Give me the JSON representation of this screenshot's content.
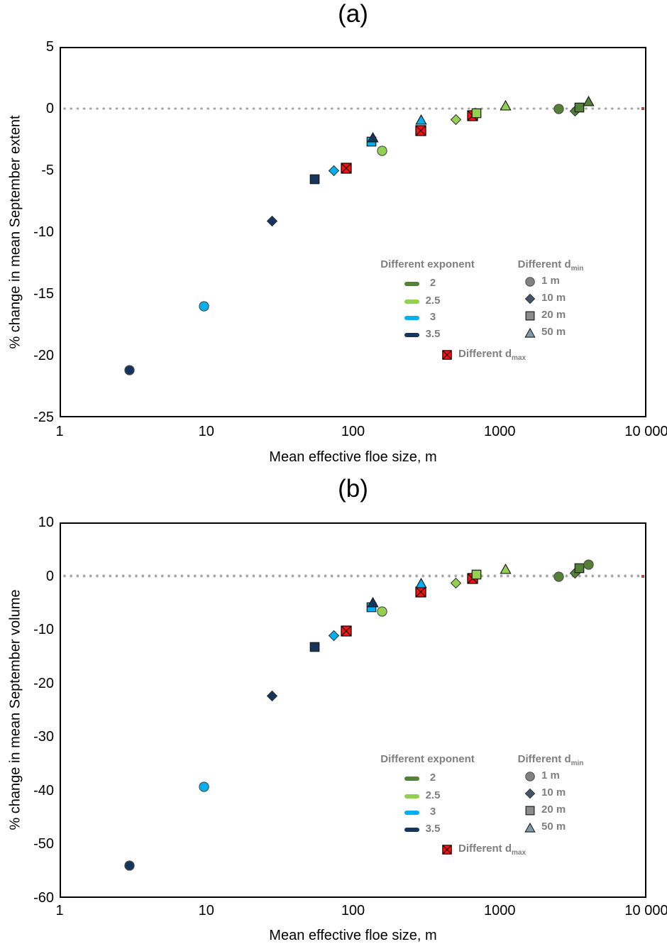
{
  "palette": {
    "exp2": "#538135",
    "exp25": "#92D050",
    "exp3": "#00B0F0",
    "exp35": "#16355C",
    "dmax": "#FF1010",
    "legend_text": "#7F7F7F",
    "legend_gray_circle": "#828282",
    "legend_gray_diamond": "#44546A",
    "legend_gray_square": "#8C8C8C",
    "legend_gray_triangle": "#7F9BAB",
    "zero_line": "#A6A6A6",
    "zero_line_end": "#B2493B"
  },
  "legend": {
    "exponent": {
      "header": "Different exponent",
      "items": [
        {
          "label": "2",
          "color_key": "exp2"
        },
        {
          "label": "2.5",
          "color_key": "exp25"
        },
        {
          "label": "3",
          "color_key": "exp3"
        },
        {
          "label": "3.5",
          "color_key": "exp35"
        }
      ]
    },
    "dmin": {
      "header_prefix": "Different d",
      "header_sub": "min",
      "items": [
        {
          "label": "1 m",
          "marker": "circle",
          "fill_key": "legend_gray_circle"
        },
        {
          "label": "10 m",
          "marker": "diamond",
          "fill_key": "legend_gray_diamond"
        },
        {
          "label": "20 m",
          "marker": "square",
          "fill_key": "legend_gray_square"
        },
        {
          "label": "50 m",
          "marker": "triangle",
          "fill_key": "legend_gray_triangle"
        }
      ]
    },
    "dmax": {
      "label_prefix": "Different d",
      "label_sub": "max",
      "marker": "redx",
      "color_key": "dmax"
    }
  },
  "chart_data": [
    {
      "type": "scatter",
      "title": "(a)",
      "xlabel": "Mean effective floe size, m",
      "ylabel": "% change in mean September extent",
      "x_scale": "log10",
      "xlim": [
        1,
        10000
      ],
      "ylim": [
        -25,
        5
      ],
      "x_tick_values": [
        1,
        10,
        100,
        1000,
        10000
      ],
      "x_tick_labels": [
        "1",
        "10",
        "100",
        "1000",
        "10 000"
      ],
      "y_tick_values": [
        5,
        0,
        -5,
        -10,
        -15,
        -20,
        -25
      ],
      "y_tick_labels": [
        "5",
        "0",
        "-5",
        "-10",
        "-15",
        "-20",
        "-25"
      ],
      "zero_line": true,
      "grid": false,
      "legend_position": "inside lower right",
      "series": [
        {
          "name": "Different dmax",
          "color_key": "dmax",
          "points": [
            {
              "marker": "redx",
              "x": 90,
              "y": -4.8
            },
            {
              "marker": "redx",
              "x": 290,
              "y": -1.8
            },
            {
              "marker": "redx",
              "x": 650,
              "y": -0.6
            }
          ]
        },
        {
          "name": "exponent 3",
          "color_key": "exp3",
          "points": [
            {
              "marker": "circle",
              "x": 9.6,
              "y": -16.0
            },
            {
              "marker": "diamond",
              "x": 74,
              "y": -5.0
            },
            {
              "marker": "square",
              "x": 134,
              "y": -2.7
            },
            {
              "marker": "triangle",
              "x": 292,
              "y": -0.9
            }
          ]
        },
        {
          "name": "exponent 2.5",
          "color_key": "exp25",
          "points": [
            {
              "marker": "circle",
              "x": 157,
              "y": -3.4
            },
            {
              "marker": "diamond",
              "x": 500,
              "y": -0.9
            },
            {
              "marker": "square",
              "x": 695,
              "y": -0.4
            },
            {
              "marker": "triangle",
              "x": 1100,
              "y": 0.25
            }
          ]
        },
        {
          "name": "exponent 3.5",
          "color_key": "exp35",
          "points": [
            {
              "marker": "circle",
              "x": 3,
              "y": -21.2
            },
            {
              "marker": "diamond",
              "x": 28,
              "y": -9.1
            },
            {
              "marker": "square",
              "x": 55,
              "y": -5.7
            },
            {
              "marker": "triangle",
              "x": 136,
              "y": -2.3
            }
          ]
        },
        {
          "name": "exponent 2",
          "color_key": "exp2",
          "points": [
            {
              "marker": "circle",
              "x": 2540,
              "y": 0.0
            },
            {
              "marker": "diamond",
              "x": 3280,
              "y": -0.2
            },
            {
              "marker": "square",
              "x": 3500,
              "y": 0.1
            },
            {
              "marker": "triangle",
              "x": 4050,
              "y": 0.6
            }
          ]
        }
      ]
    },
    {
      "type": "scatter",
      "title": "(b)",
      "xlabel": "Mean effective floe size, m",
      "ylabel": "% change in mean September volume",
      "x_scale": "log10",
      "xlim": [
        1,
        10000
      ],
      "ylim": [
        -60,
        10
      ],
      "x_tick_values": [
        1,
        10,
        100,
        1000,
        10000
      ],
      "x_tick_labels": [
        "1",
        "10",
        "100",
        "1000",
        "10 000"
      ],
      "y_tick_values": [
        10,
        0,
        -10,
        -20,
        -30,
        -40,
        -50,
        -60
      ],
      "y_tick_labels": [
        "10",
        "0",
        "-10",
        "-20",
        "-30",
        "-40",
        "-50",
        "-60"
      ],
      "zero_line": true,
      "grid": false,
      "legend_position": "inside lower right",
      "series": [
        {
          "name": "Different dmax",
          "color_key": "dmax",
          "points": [
            {
              "marker": "redx",
              "x": 90,
              "y": -10.3
            },
            {
              "marker": "redx",
              "x": 290,
              "y": -3.0
            },
            {
              "marker": "redx",
              "x": 650,
              "y": -0.4
            }
          ]
        },
        {
          "name": "exponent 3",
          "color_key": "exp3",
          "points": [
            {
              "marker": "circle",
              "x": 9.6,
              "y": -39.3
            },
            {
              "marker": "diamond",
              "x": 74,
              "y": -11.1
            },
            {
              "marker": "square",
              "x": 134,
              "y": -5.8
            },
            {
              "marker": "triangle",
              "x": 292,
              "y": -1.3
            }
          ]
        },
        {
          "name": "exponent 2.5",
          "color_key": "exp25",
          "points": [
            {
              "marker": "circle",
              "x": 157,
              "y": -6.6
            },
            {
              "marker": "diamond",
              "x": 500,
              "y": -1.3
            },
            {
              "marker": "square",
              "x": 695,
              "y": 0.3
            },
            {
              "marker": "triangle",
              "x": 1100,
              "y": 1.3
            }
          ]
        },
        {
          "name": "exponent 3.5",
          "color_key": "exp35",
          "points": [
            {
              "marker": "circle",
              "x": 3,
              "y": -54.0
            },
            {
              "marker": "diamond",
              "x": 28,
              "y": -22.4
            },
            {
              "marker": "square",
              "x": 55,
              "y": -13.2
            },
            {
              "marker": "triangle",
              "x": 136,
              "y": -4.9
            }
          ]
        },
        {
          "name": "exponent 2",
          "color_key": "exp2",
          "points": [
            {
              "marker": "circle",
              "x": 2540,
              "y": -0.1
            },
            {
              "marker": "diamond",
              "x": 3280,
              "y": 0.5
            },
            {
              "marker": "square",
              "x": 3500,
              "y": 1.4
            },
            {
              "marker": "circle",
              "x": 4050,
              "y": 2.1
            }
          ]
        }
      ]
    }
  ]
}
